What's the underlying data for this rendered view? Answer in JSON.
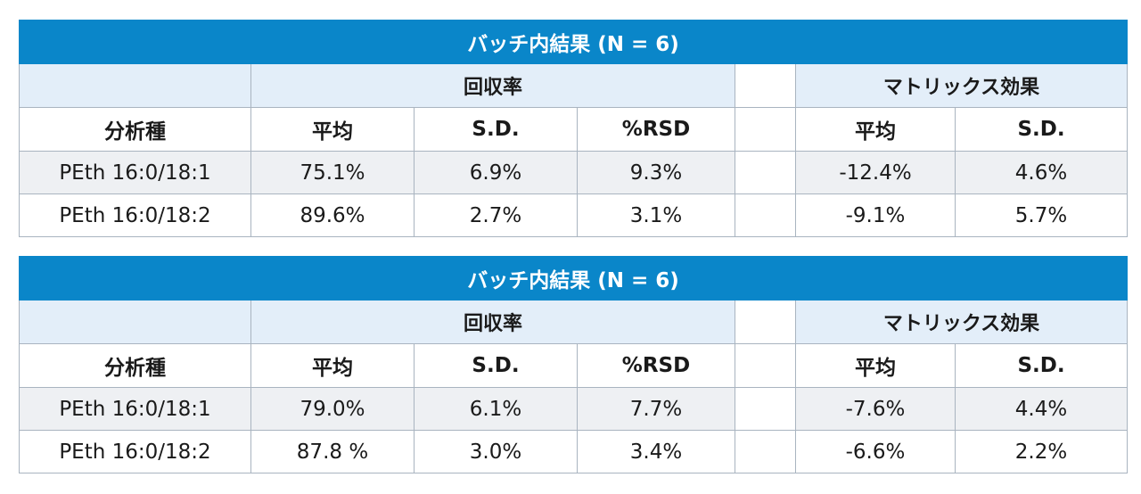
{
  "tables": [
    {
      "title": "バッチ内結果 (N = 6)",
      "group_recovery": "回収率",
      "group_matrix": "マトリックス効果",
      "headers": {
        "analyte": "分析種",
        "rec_mean": "平均",
        "rec_sd": "S.D.",
        "rec_rsd": "%RSD",
        "mat_mean": "平均",
        "mat_sd": "S.D."
      },
      "rows": [
        {
          "analyte": "PEth 16:0/18:1",
          "rec_mean": "75.1%",
          "rec_sd": "6.9%",
          "rec_rsd": "9.3%",
          "mat_mean": "-12.4%",
          "mat_sd": "4.6%"
        },
        {
          "analyte": "PEth 16:0/18:2",
          "rec_mean": "89.6%",
          "rec_sd": "2.7%",
          "rec_rsd": "3.1%",
          "mat_mean": "-9.1%",
          "mat_sd": "5.7%"
        }
      ]
    },
    {
      "title": "バッチ内結果 (N = 6)",
      "group_recovery": "回収率",
      "group_matrix": "マトリックス効果",
      "headers": {
        "analyte": "分析種",
        "rec_mean": "平均",
        "rec_sd": "S.D.",
        "rec_rsd": "%RSD",
        "mat_mean": "平均",
        "mat_sd": "S.D."
      },
      "rows": [
        {
          "analyte": "PEth 16:0/18:1",
          "rec_mean": "79.0%",
          "rec_sd": "6.1%",
          "rec_rsd": "7.7%",
          "mat_mean": "-7.6%",
          "mat_sd": "4.4%"
        },
        {
          "analyte": "PEth 16:0/18:2",
          "rec_mean": "87.8 %",
          "rec_sd": "3.0%",
          "rec_rsd": "3.4%",
          "mat_mean": "-6.6%",
          "mat_sd": "2.2%"
        }
      ]
    }
  ],
  "colors": {
    "title_bar": "#0a86c9",
    "group_band": "#e3eef9",
    "row_shade": "#eef0f3",
    "border": "#a9b4c0"
  }
}
